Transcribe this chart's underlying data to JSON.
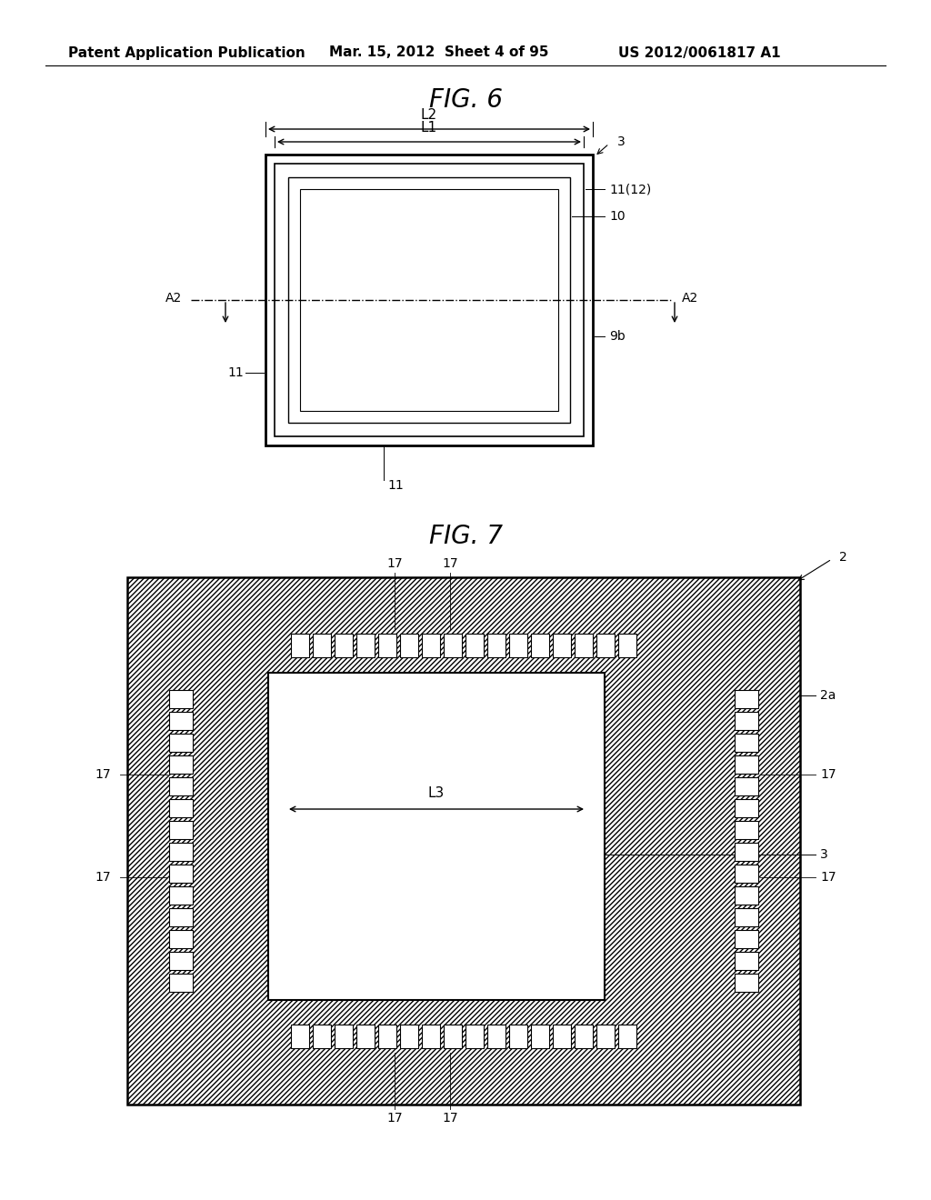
{
  "bg_color": "#ffffff",
  "header_text": "Patent Application Publication",
  "header_date": "Mar. 15, 2012  Sheet 4 of 95",
  "header_patent": "US 2012/0061817 A1",
  "fig6_title": "FIG. 6",
  "fig7_title": "FIG. 7",
  "text_color": "#000000",
  "line_color": "#000000"
}
